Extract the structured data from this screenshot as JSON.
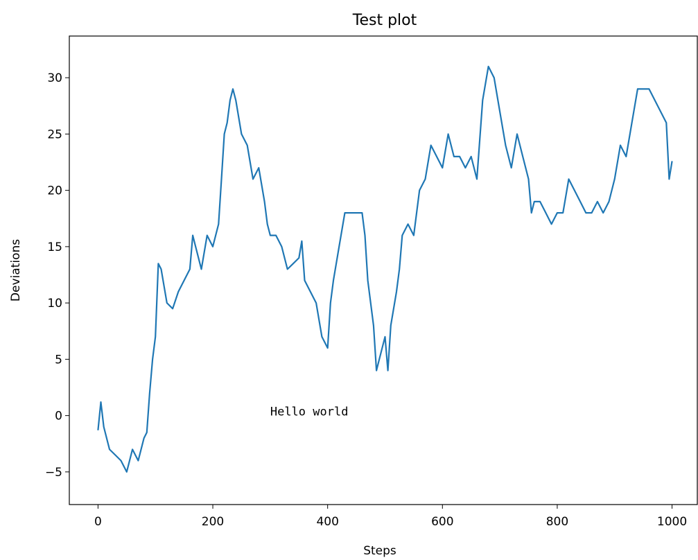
{
  "chart_data": {
    "type": "line",
    "title": "Test plot",
    "x_label": "Steps",
    "y_label": "Deviations",
    "annotation": {
      "text": "Hello world",
      "x": 300,
      "y": 0
    },
    "series": [
      {
        "color": "#1f77b4",
        "x": [
          0,
          5,
          10,
          20,
          30,
          40,
          50,
          60,
          70,
          80,
          85,
          90,
          95,
          100,
          105,
          110,
          120,
          130,
          140,
          150,
          160,
          165,
          170,
          180,
          190,
          200,
          210,
          215,
          220,
          225,
          230,
          235,
          240,
          250,
          260,
          270,
          280,
          290,
          295,
          300,
          310,
          320,
          330,
          340,
          350,
          355,
          360,
          370,
          380,
          390,
          400,
          405,
          410,
          420,
          430,
          440,
          450,
          460,
          465,
          470,
          480,
          485,
          490,
          500,
          505,
          510,
          520,
          525,
          530,
          540,
          550,
          560,
          570,
          580,
          590,
          600,
          610,
          620,
          630,
          640,
          650,
          660,
          670,
          680,
          690,
          700,
          710,
          720,
          730,
          740,
          750,
          755,
          760,
          770,
          780,
          790,
          800,
          810,
          820,
          830,
          840,
          850,
          860,
          870,
          880,
          890,
          900,
          910,
          920,
          930,
          940,
          950,
          960,
          970,
          980,
          990,
          995,
          1000
        ],
        "values": [
          -1.3,
          1.2,
          -1,
          -3,
          -3.5,
          -4,
          -5,
          -3,
          -4,
          -2,
          -1.5,
          2,
          5,
          7,
          13.5,
          13,
          10,
          9.5,
          11,
          12,
          13,
          16,
          15,
          13,
          16,
          15,
          17,
          21,
          25,
          26,
          28,
          29,
          28,
          25,
          24,
          21,
          22,
          19,
          17,
          16,
          16,
          15,
          13,
          13.5,
          14,
          15.5,
          12,
          11,
          10,
          7,
          6,
          10,
          12,
          15,
          18,
          18,
          18,
          18,
          16,
          12,
          8,
          4,
          5,
          7,
          4,
          8,
          11,
          13,
          16,
          17,
          16,
          20,
          21,
          24,
          23,
          22,
          25,
          23,
          23,
          22,
          23,
          21,
          28,
          31,
          30,
          27,
          24,
          22,
          25,
          23,
          21,
          18,
          19,
          19,
          18,
          17,
          18,
          18,
          21,
          20,
          19,
          18,
          18,
          19,
          18,
          19,
          21,
          24,
          23,
          26,
          29,
          29,
          29,
          28,
          27,
          26,
          21,
          22.6
        ]
      }
    ],
    "xlim": [
      -50,
      1044
    ],
    "ylim": [
      -7.9,
      33.7
    ],
    "xticks": [
      0,
      200,
      400,
      600,
      800,
      1000
    ],
    "yticks": [
      {
        "value": -5,
        "label": "−5"
      },
      0,
      5,
      10,
      15,
      20,
      25,
      30
    ]
  }
}
